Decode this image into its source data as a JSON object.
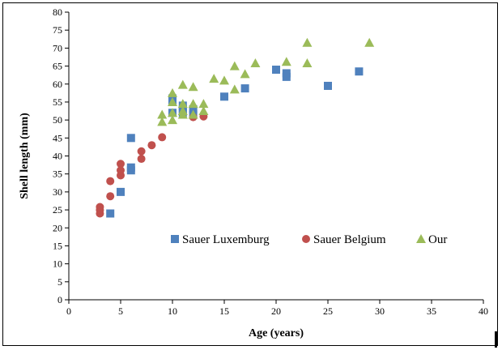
{
  "chart_data": {
    "type": "scatter",
    "xlabel": "Age (years)",
    "ylabel": "Shell length (mm)",
    "xlim": [
      0,
      40
    ],
    "ylim": [
      0,
      80
    ],
    "x_ticks": [
      0,
      5,
      10,
      15,
      20,
      25,
      30,
      35,
      40
    ],
    "y_ticks": [
      0,
      5,
      10,
      15,
      20,
      25,
      30,
      35,
      40,
      45,
      50,
      55,
      60,
      65,
      70,
      75,
      80
    ],
    "grid": false,
    "legend_position": "bottom-center inside plot",
    "series": [
      {
        "name": "Sauer Luxemburg",
        "marker": "square",
        "color": "#4F81BD",
        "points": [
          [
            4,
            24
          ],
          [
            5,
            30
          ],
          [
            6,
            36
          ],
          [
            6,
            36.8
          ],
          [
            6,
            45
          ],
          [
            10,
            52
          ],
          [
            10,
            55.3
          ],
          [
            10,
            56
          ],
          [
            11,
            52
          ],
          [
            11,
            53
          ],
          [
            11,
            54
          ],
          [
            12,
            51.5
          ],
          [
            12,
            53
          ],
          [
            15,
            56.5
          ],
          [
            17,
            58.8
          ],
          [
            20,
            64
          ],
          [
            21,
            62
          ],
          [
            21,
            63
          ],
          [
            25,
            59.5
          ],
          [
            28,
            63.5
          ]
        ]
      },
      {
        "name": "Sauer Belgium",
        "marker": "circle",
        "color": "#C0504D",
        "points": [
          [
            3,
            24
          ],
          [
            3,
            25
          ],
          [
            3,
            25.8
          ],
          [
            4,
            28.8
          ],
          [
            4,
            33
          ],
          [
            5,
            34.6
          ],
          [
            5,
            36
          ],
          [
            5,
            37.8
          ],
          [
            7,
            39.2
          ],
          [
            7,
            41.3
          ],
          [
            8,
            43
          ],
          [
            9,
            45.2
          ],
          [
            12,
            50.8
          ],
          [
            13,
            51
          ]
        ]
      },
      {
        "name": "Our",
        "marker": "triangle",
        "color": "#9BBB59",
        "points": [
          [
            9,
            49.5
          ],
          [
            9,
            51.5
          ],
          [
            10,
            50
          ],
          [
            10,
            52
          ],
          [
            10,
            55
          ],
          [
            10,
            57.5
          ],
          [
            11,
            51.5
          ],
          [
            11,
            52.5
          ],
          [
            11,
            54.5
          ],
          [
            11,
            59.8
          ],
          [
            12,
            51.5
          ],
          [
            12,
            54.5
          ],
          [
            12,
            59.2
          ],
          [
            13,
            52.5
          ],
          [
            13,
            54.5
          ],
          [
            14,
            61.5
          ],
          [
            15,
            61
          ],
          [
            16,
            58.5
          ],
          [
            16,
            65
          ],
          [
            17,
            62.8
          ],
          [
            18,
            65.8
          ],
          [
            21,
            66.2
          ],
          [
            23,
            65.8
          ],
          [
            23,
            71.5
          ],
          [
            29,
            71.5
          ]
        ]
      }
    ]
  }
}
